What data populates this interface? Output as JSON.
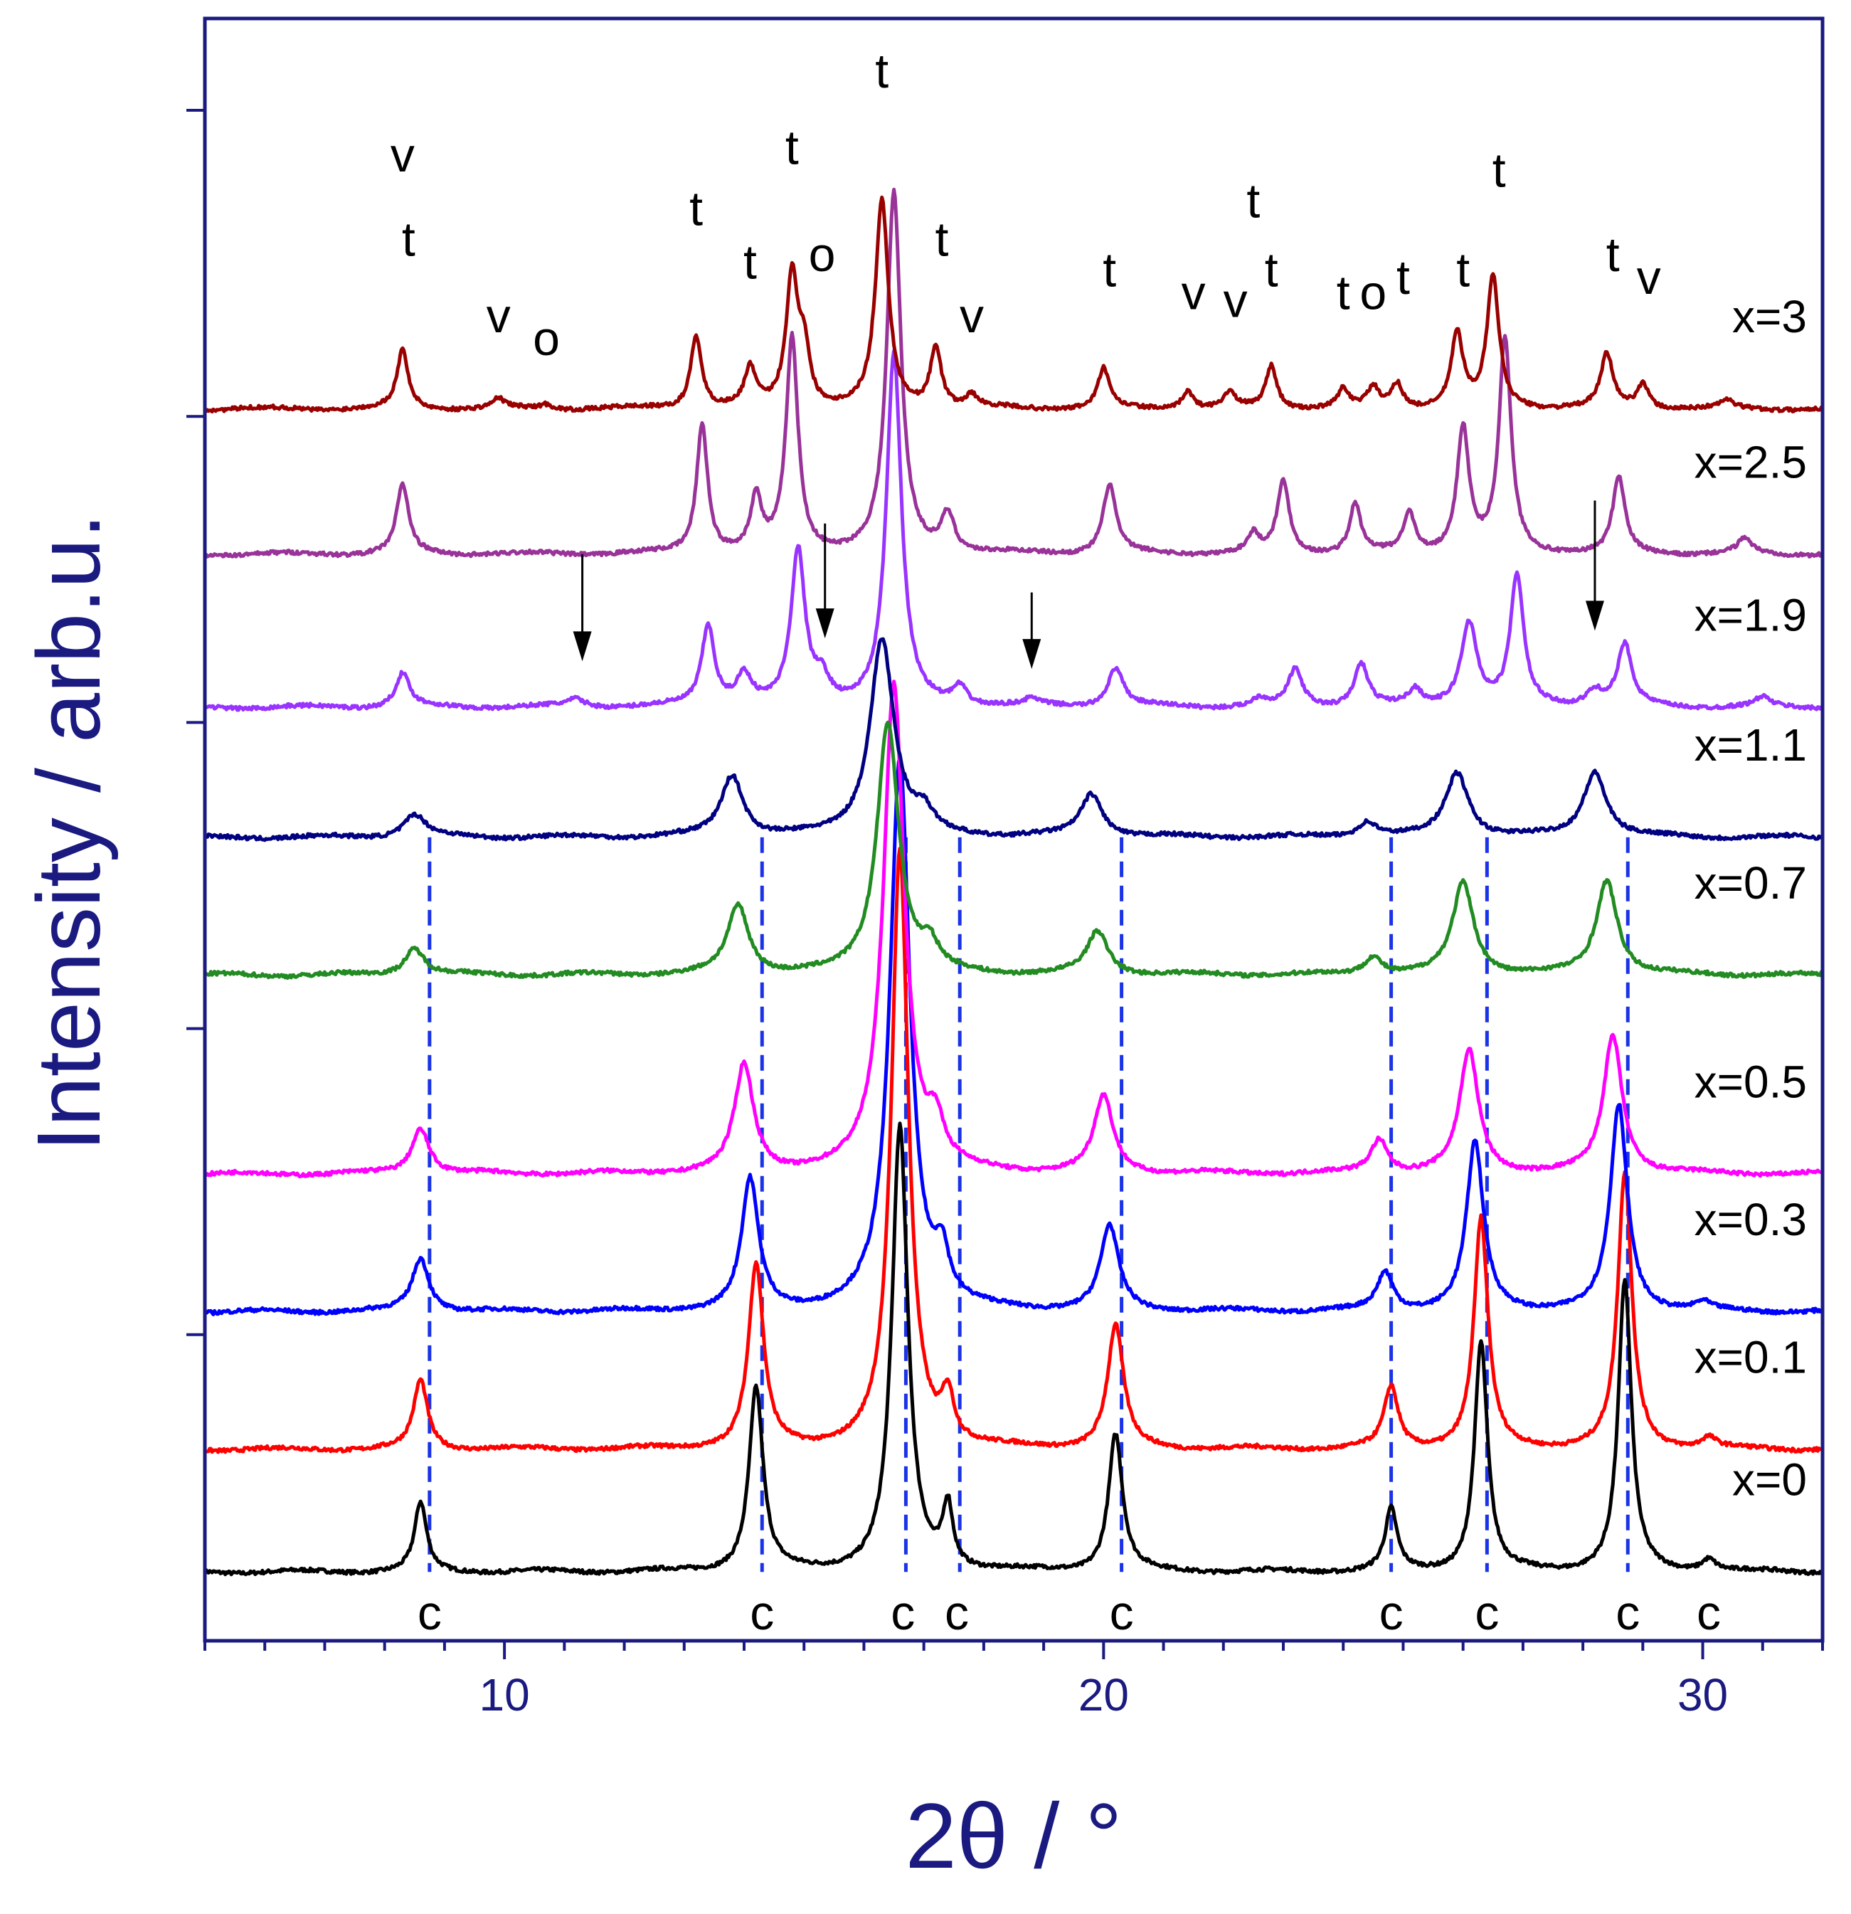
{
  "chart_data": {
    "type": "line",
    "title": "",
    "xlabel": "2θ / °",
    "ylabel": "Intensity / arb.u.",
    "xlim": [
      5,
      32
    ],
    "ylim": [
      0,
      10.6
    ],
    "x_ticks": [
      10,
      20,
      30
    ],
    "x_tick_labels": [
      "10",
      "20",
      "30"
    ],
    "y_ticks_unlabeled": [
      2,
      4,
      6,
      8,
      10
    ],
    "grid": false,
    "legend": "none; each pattern labeled at right end",
    "colors": {
      "axis": "#1a1a80",
      "reference_line": "#1a33e6"
    },
    "series": [
      {
        "name": "x=0",
        "label": "x=0",
        "color": "#000000",
        "baseline": 0.45,
        "peaks": [
          [
            8.6,
            0.45,
            0.12
          ],
          [
            14.2,
            1.2,
            0.14
          ],
          [
            16.6,
            2.9,
            0.16
          ],
          [
            17.4,
            0.4,
            0.1
          ],
          [
            20.2,
            0.9,
            0.14
          ],
          [
            24.8,
            0.4,
            0.12
          ],
          [
            26.3,
            1.5,
            0.13
          ],
          [
            28.7,
            1.9,
            0.13
          ],
          [
            30.1,
            0.08,
            0.15
          ]
        ]
      },
      {
        "name": "x=0.1",
        "label": "x=0.1",
        "color": "#ff0000",
        "baseline": 1.25,
        "peaks": [
          [
            8.6,
            0.45,
            0.14
          ],
          [
            14.2,
            1.2,
            0.15
          ],
          [
            16.6,
            3.9,
            0.17
          ],
          [
            17.4,
            0.3,
            0.12
          ],
          [
            20.2,
            0.8,
            0.16
          ],
          [
            24.8,
            0.4,
            0.14
          ],
          [
            26.3,
            1.5,
            0.14
          ],
          [
            28.7,
            1.8,
            0.14
          ],
          [
            30.1,
            0.07,
            0.15
          ]
        ]
      },
      {
        "name": "x=0.3",
        "label": "x=0.3",
        "color": "#0000ff",
        "baseline": 2.15,
        "peaks": [
          [
            8.6,
            0.35,
            0.17
          ],
          [
            14.1,
            0.85,
            0.17
          ],
          [
            16.6,
            3.6,
            0.2
          ],
          [
            17.3,
            0.3,
            0.14
          ],
          [
            20.1,
            0.55,
            0.18
          ],
          [
            24.7,
            0.25,
            0.16
          ],
          [
            26.2,
            1.1,
            0.17
          ],
          [
            28.6,
            1.35,
            0.17
          ],
          [
            30.0,
            0.05,
            0.15
          ]
        ]
      },
      {
        "name": "x=0.5",
        "label": "x=0.5",
        "color": "#ff00ff",
        "baseline": 3.05,
        "peaks": [
          [
            8.6,
            0.3,
            0.18
          ],
          [
            14.0,
            0.7,
            0.19
          ],
          [
            16.5,
            3.2,
            0.21
          ],
          [
            17.2,
            0.25,
            0.15
          ],
          [
            20.0,
            0.5,
            0.19
          ],
          [
            24.6,
            0.22,
            0.17
          ],
          [
            26.1,
            0.8,
            0.19
          ],
          [
            28.5,
            0.9,
            0.19
          ]
        ]
      },
      {
        "name": "x=0.7",
        "label": "x=0.7",
        "color": "#228b22",
        "baseline": 4.35,
        "peaks": [
          [
            8.5,
            0.18,
            0.2
          ],
          [
            13.9,
            0.45,
            0.21
          ],
          [
            16.4,
            1.65,
            0.22
          ],
          [
            17.1,
            0.15,
            0.17
          ],
          [
            19.9,
            0.28,
            0.21
          ],
          [
            24.5,
            0.12,
            0.18
          ],
          [
            26.0,
            0.6,
            0.21
          ],
          [
            28.4,
            0.62,
            0.21
          ]
        ]
      },
      {
        "name": "x=1.1",
        "label": "x=1.1",
        "color": "#000080",
        "baseline": 5.25,
        "peaks": [
          [
            8.5,
            0.15,
            0.22
          ],
          [
            13.8,
            0.4,
            0.22
          ],
          [
            16.3,
            1.3,
            0.24
          ],
          [
            17.0,
            0.12,
            0.18
          ],
          [
            19.8,
            0.28,
            0.22
          ],
          [
            24.4,
            0.1,
            0.2
          ],
          [
            25.9,
            0.42,
            0.23
          ],
          [
            28.2,
            0.43,
            0.23
          ]
        ]
      },
      {
        "name": "x=1.9",
        "label": "x=1.9",
        "color": "#9933ff",
        "baseline": 6.1,
        "peaks": [
          [
            8.3,
            0.22,
            0.14
          ],
          [
            11.2,
            0.05,
            0.18
          ],
          [
            13.4,
            0.52,
            0.13
          ],
          [
            14.0,
            0.2,
            0.16
          ],
          [
            14.9,
            1.0,
            0.14
          ],
          [
            15.3,
            0.15,
            0.15
          ],
          [
            16.5,
            2.3,
            0.15
          ],
          [
            17.6,
            0.12,
            0.14
          ],
          [
            18.8,
            0.04,
            0.14
          ],
          [
            20.2,
            0.25,
            0.16
          ],
          [
            22.6,
            0.05,
            0.14
          ],
          [
            23.2,
            0.24,
            0.14
          ],
          [
            24.3,
            0.28,
            0.14
          ],
          [
            25.2,
            0.1,
            0.13
          ],
          [
            26.1,
            0.55,
            0.16
          ],
          [
            26.9,
            0.85,
            0.13
          ],
          [
            28.2,
            0.1,
            0.18
          ],
          [
            28.7,
            0.4,
            0.14
          ],
          [
            31.0,
            0.06,
            0.14
          ]
        ]
      },
      {
        "name": "x=2.5",
        "label": "x=2.5",
        "color": "#993399",
        "baseline": 7.1,
        "peaks": [
          [
            8.3,
            0.45,
            0.12
          ],
          [
            13.3,
            0.85,
            0.11
          ],
          [
            14.2,
            0.35,
            0.11
          ],
          [
            14.8,
            1.4,
            0.12
          ],
          [
            16.5,
            2.35,
            0.14
          ],
          [
            17.4,
            0.25,
            0.13
          ],
          [
            20.1,
            0.45,
            0.13
          ],
          [
            22.5,
            0.12,
            0.11
          ],
          [
            23.0,
            0.47,
            0.12
          ],
          [
            24.2,
            0.32,
            0.11
          ],
          [
            25.1,
            0.27,
            0.11
          ],
          [
            26.0,
            0.82,
            0.12
          ],
          [
            26.7,
            1.4,
            0.12
          ],
          [
            28.6,
            0.5,
            0.12
          ],
          [
            30.7,
            0.1,
            0.13
          ]
        ]
      },
      {
        "name": "x=3",
        "label": "x=3",
        "color": "#990000",
        "baseline": 8.05,
        "peaks": [
          [
            8.3,
            0.38,
            0.11
          ],
          [
            9.9,
            0.06,
            0.12
          ],
          [
            10.7,
            0.03,
            0.12
          ],
          [
            13.2,
            0.48,
            0.11
          ],
          [
            14.1,
            0.25,
            0.11
          ],
          [
            14.8,
            0.85,
            0.12
          ],
          [
            15.0,
            0.35,
            0.11
          ],
          [
            16.3,
            1.35,
            0.13
          ],
          [
            17.2,
            0.4,
            0.11
          ],
          [
            17.8,
            0.08,
            0.11
          ],
          [
            20.0,
            0.26,
            0.11
          ],
          [
            21.4,
            0.12,
            0.11
          ],
          [
            22.1,
            0.1,
            0.11
          ],
          [
            22.8,
            0.28,
            0.11
          ],
          [
            24.0,
            0.12,
            0.11
          ],
          [
            24.5,
            0.13,
            0.11
          ],
          [
            24.9,
            0.16,
            0.11
          ],
          [
            25.9,
            0.48,
            0.12
          ],
          [
            26.5,
            0.85,
            0.12
          ],
          [
            28.4,
            0.35,
            0.12
          ],
          [
            29.0,
            0.16,
            0.12
          ],
          [
            30.4,
            0.05,
            0.12
          ]
        ]
      }
    ],
    "reference_lines": {
      "positions": [
        8.75,
        14.3,
        16.7,
        17.6,
        20.3,
        24.8,
        26.4,
        28.75
      ],
      "y_range": [
        0.45,
        5.25
      ]
    },
    "annotations": {
      "c_labels": [
        {
          "text": "c",
          "x": 8.75
        },
        {
          "text": "c",
          "x": 14.3
        },
        {
          "text": "c",
          "x": 16.65
        },
        {
          "text": "c",
          "x": 17.55
        },
        {
          "text": "c",
          "x": 20.3
        },
        {
          "text": "c",
          "x": 24.8
        },
        {
          "text": "c",
          "x": 26.4
        },
        {
          "text": "c",
          "x": 28.75
        },
        {
          "text": "c",
          "x": 30.1
        }
      ],
      "phase_labels": [
        {
          "text": "v",
          "x": 8.3,
          "y": 9.6
        },
        {
          "text": "t",
          "x": 8.4,
          "y": 9.05
        },
        {
          "text": "v",
          "x": 9.9,
          "y": 8.55
        },
        {
          "text": "o",
          "x": 10.7,
          "y": 8.4
        },
        {
          "text": "t",
          "x": 13.2,
          "y": 9.25
        },
        {
          "text": "t",
          "x": 14.1,
          "y": 8.9
        },
        {
          "text": "t",
          "x": 14.8,
          "y": 9.65
        },
        {
          "text": "o",
          "x": 15.3,
          "y": 8.95
        },
        {
          "text": "t",
          "x": 16.3,
          "y": 10.15
        },
        {
          "text": "t",
          "x": 17.3,
          "y": 9.05
        },
        {
          "text": "v",
          "x": 17.8,
          "y": 8.55
        },
        {
          "text": "t",
          "x": 20.1,
          "y": 8.85
        },
        {
          "text": "v",
          "x": 21.5,
          "y": 8.7
        },
        {
          "text": "v",
          "x": 22.2,
          "y": 8.65
        },
        {
          "text": "t",
          "x": 22.5,
          "y": 9.3
        },
        {
          "text": "t",
          "x": 22.8,
          "y": 8.85
        },
        {
          "text": "t",
          "x": 24.0,
          "y": 8.7
        },
        {
          "text": "o",
          "x": 24.5,
          "y": 8.7
        },
        {
          "text": "t",
          "x": 25.0,
          "y": 8.8
        },
        {
          "text": "t",
          "x": 26.0,
          "y": 8.85
        },
        {
          "text": "t",
          "x": 26.6,
          "y": 9.5
        },
        {
          "text": "t",
          "x": 28.5,
          "y": 8.95
        },
        {
          "text": "v",
          "x": 29.1,
          "y": 8.8
        }
      ],
      "arrows": [
        {
          "x": 11.3,
          "y_from": 7.1,
          "y_to": 6.4
        },
        {
          "x": 15.35,
          "y_from": 7.3,
          "y_to": 6.55
        },
        {
          "x": 18.8,
          "y_from": 6.85,
          "y_to": 6.35
        },
        {
          "x": 28.2,
          "y_from": 7.45,
          "y_to": 6.6
        }
      ]
    }
  }
}
